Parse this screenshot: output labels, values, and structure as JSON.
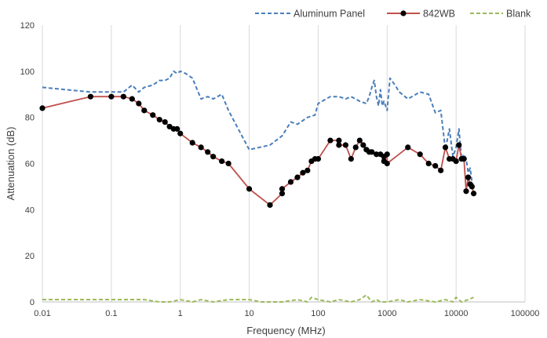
{
  "chart_data": {
    "type": "line",
    "title": "",
    "xlabel": "Frequency (MHz)",
    "ylabel": "Attenuation (dB)",
    "x_scale": "log",
    "xlim": [
      0.01,
      100000
    ],
    "ylim": [
      0,
      120
    ],
    "x_ticks": [
      0.01,
      0.1,
      1,
      10,
      100,
      1000,
      10000,
      100000
    ],
    "x_tick_labels": [
      "0.01",
      "0.1",
      "1",
      "10",
      "100",
      "1000",
      "10000",
      "100000"
    ],
    "y_ticks": [
      0,
      20,
      40,
      60,
      80,
      100,
      120
    ],
    "y_tick_labels": [
      "0",
      "20",
      "40",
      "60",
      "80",
      "100",
      "120"
    ],
    "grid": "vertical",
    "legend_position": "top-right",
    "series": [
      {
        "name": "Aluminum Panel",
        "color": "#4a7ebb",
        "style": "dashed",
        "markers": false,
        "x": [
          0.01,
          0.05,
          0.1,
          0.15,
          0.2,
          0.25,
          0.3,
          0.4,
          0.5,
          0.6,
          0.7,
          0.8,
          0.9,
          1,
          1.2,
          1.5,
          2,
          2.5,
          3,
          4,
          5,
          10,
          20,
          30,
          40,
          50,
          70,
          90,
          100,
          150,
          200,
          250,
          300,
          400,
          500,
          550,
          600,
          650,
          700,
          750,
          800,
          850,
          900,
          950,
          1000,
          1100,
          1300,
          1500,
          2000,
          3000,
          4000,
          5000,
          6000,
          7000,
          8000,
          9000,
          10000,
          11000,
          12000,
          13000,
          14000,
          15000,
          16000,
          17000,
          18000
        ],
        "y": [
          93,
          91,
          91,
          91,
          94,
          91,
          93,
          94,
          96,
          96,
          97,
          100,
          99,
          100,
          99,
          97,
          88,
          89,
          88,
          90,
          83,
          66,
          68,
          72,
          78,
          77,
          80,
          81,
          86,
          89,
          89,
          88,
          89,
          87,
          86,
          89,
          93,
          96,
          89,
          85,
          92,
          85,
          87,
          85,
          83,
          97,
          94,
          91,
          88,
          91,
          90,
          82,
          83,
          66,
          75,
          63,
          67,
          75,
          62,
          64,
          62,
          56,
          58,
          52,
          50
        ]
      },
      {
        "name": "842WB",
        "color": "#c0504d",
        "style": "solid",
        "markers": true,
        "marker_color": "#000000",
        "x": [
          0.01,
          0.05,
          0.1,
          0.15,
          0.2,
          0.25,
          0.3,
          0.4,
          0.5,
          0.6,
          0.7,
          0.8,
          0.9,
          1,
          1.5,
          2,
          2.5,
          3,
          4,
          5,
          10,
          20,
          30,
          30,
          40,
          50,
          60,
          70,
          80,
          90,
          100,
          150,
          200,
          200,
          250,
          300,
          350,
          400,
          450,
          500,
          550,
          600,
          700,
          800,
          900,
          900,
          1000,
          1000,
          2000,
          3000,
          4000,
          5000,
          6000,
          7000,
          8000,
          9000,
          10000,
          11000,
          12000,
          13000,
          14000,
          15000,
          16000,
          17000,
          18000
        ],
        "y": [
          84,
          89,
          89,
          89,
          88,
          86,
          83,
          81,
          79,
          78,
          76,
          75,
          75,
          73,
          69,
          67,
          65,
          63,
          61,
          60,
          49,
          42,
          47,
          49,
          52,
          54,
          56,
          57,
          61,
          62,
          62,
          70,
          70,
          68,
          68,
          62,
          67,
          70,
          68,
          66,
          65,
          65,
          64,
          64,
          61,
          63,
          64,
          60,
          67,
          64,
          60,
          59,
          57,
          67,
          62,
          62,
          61,
          68,
          62,
          62,
          48,
          54,
          51,
          50,
          47
        ]
      },
      {
        "name": "Blank",
        "color": "#9bbb59",
        "style": "dashed",
        "markers": false,
        "x": [
          0.01,
          0.05,
          0.1,
          0.2,
          0.3,
          0.5,
          0.7,
          1,
          1.5,
          2,
          3,
          5,
          10,
          15,
          20,
          30,
          50,
          70,
          80,
          100,
          150,
          200,
          300,
          400,
          500,
          600,
          700,
          800,
          1000,
          1500,
          2000,
          3000,
          5000,
          7000,
          9000,
          10000,
          12000,
          15000,
          18000
        ],
        "y": [
          1,
          1,
          1,
          1,
          1,
          0,
          0,
          1,
          0,
          1,
          0,
          1,
          1,
          0,
          0,
          0,
          1,
          0,
          2,
          1,
          0,
          1,
          0,
          1,
          3,
          0,
          1,
          0,
          0,
          1,
          0,
          1,
          0,
          1,
          0,
          2,
          0,
          1,
          2
        ]
      }
    ]
  }
}
